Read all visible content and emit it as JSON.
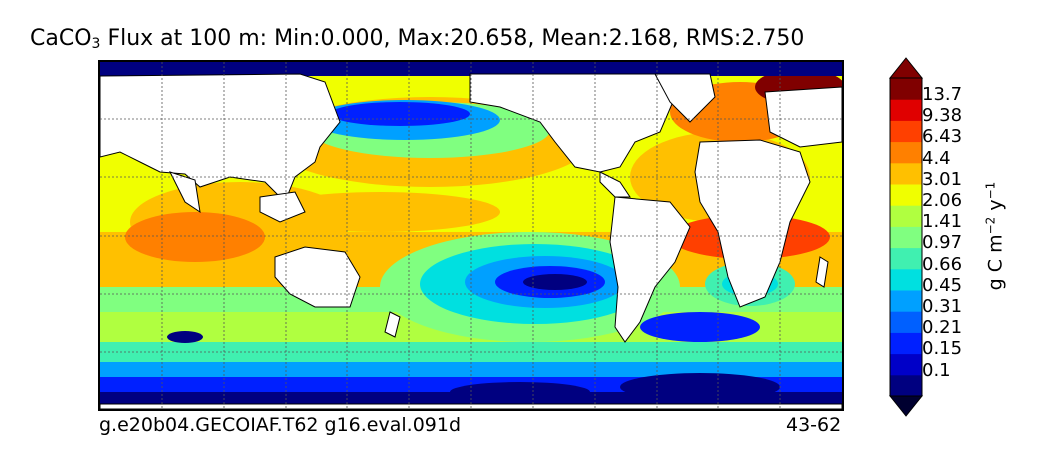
{
  "title": {
    "prefix": "CaCO",
    "subscript": "3",
    "text": " Flux at 100 m: Min:0.000, Max:20.658, Mean:2.168, RMS:2.750"
  },
  "footer": {
    "case_name": "g.e20b04.GECOIAF.T62 g16.eval.091d",
    "years": "43-62"
  },
  "colorbar": {
    "labels": [
      "13.7",
      "9.38",
      "6.43",
      "4.4",
      "3.01",
      "2.06",
      "1.41",
      "0.97",
      "0.66",
      "0.45",
      "0.31",
      "0.21",
      "0.15",
      "0.1"
    ],
    "colors": [
      "#000080",
      "#0000c8",
      "#0020ff",
      "#0060ff",
      "#00a0ff",
      "#00e0e0",
      "#40f0b0",
      "#80ff80",
      "#b0ff40",
      "#f0ff00",
      "#ffc000",
      "#ff8000",
      "#ff4000",
      "#e00000",
      "#800000"
    ],
    "unit_base": "g C m",
    "unit_exp1": "−2",
    "unit_mid": " y",
    "unit_exp2": "−1"
  },
  "colors": {
    "land": "#ffffff",
    "coast": "#000000",
    "grid": "#555555"
  }
}
